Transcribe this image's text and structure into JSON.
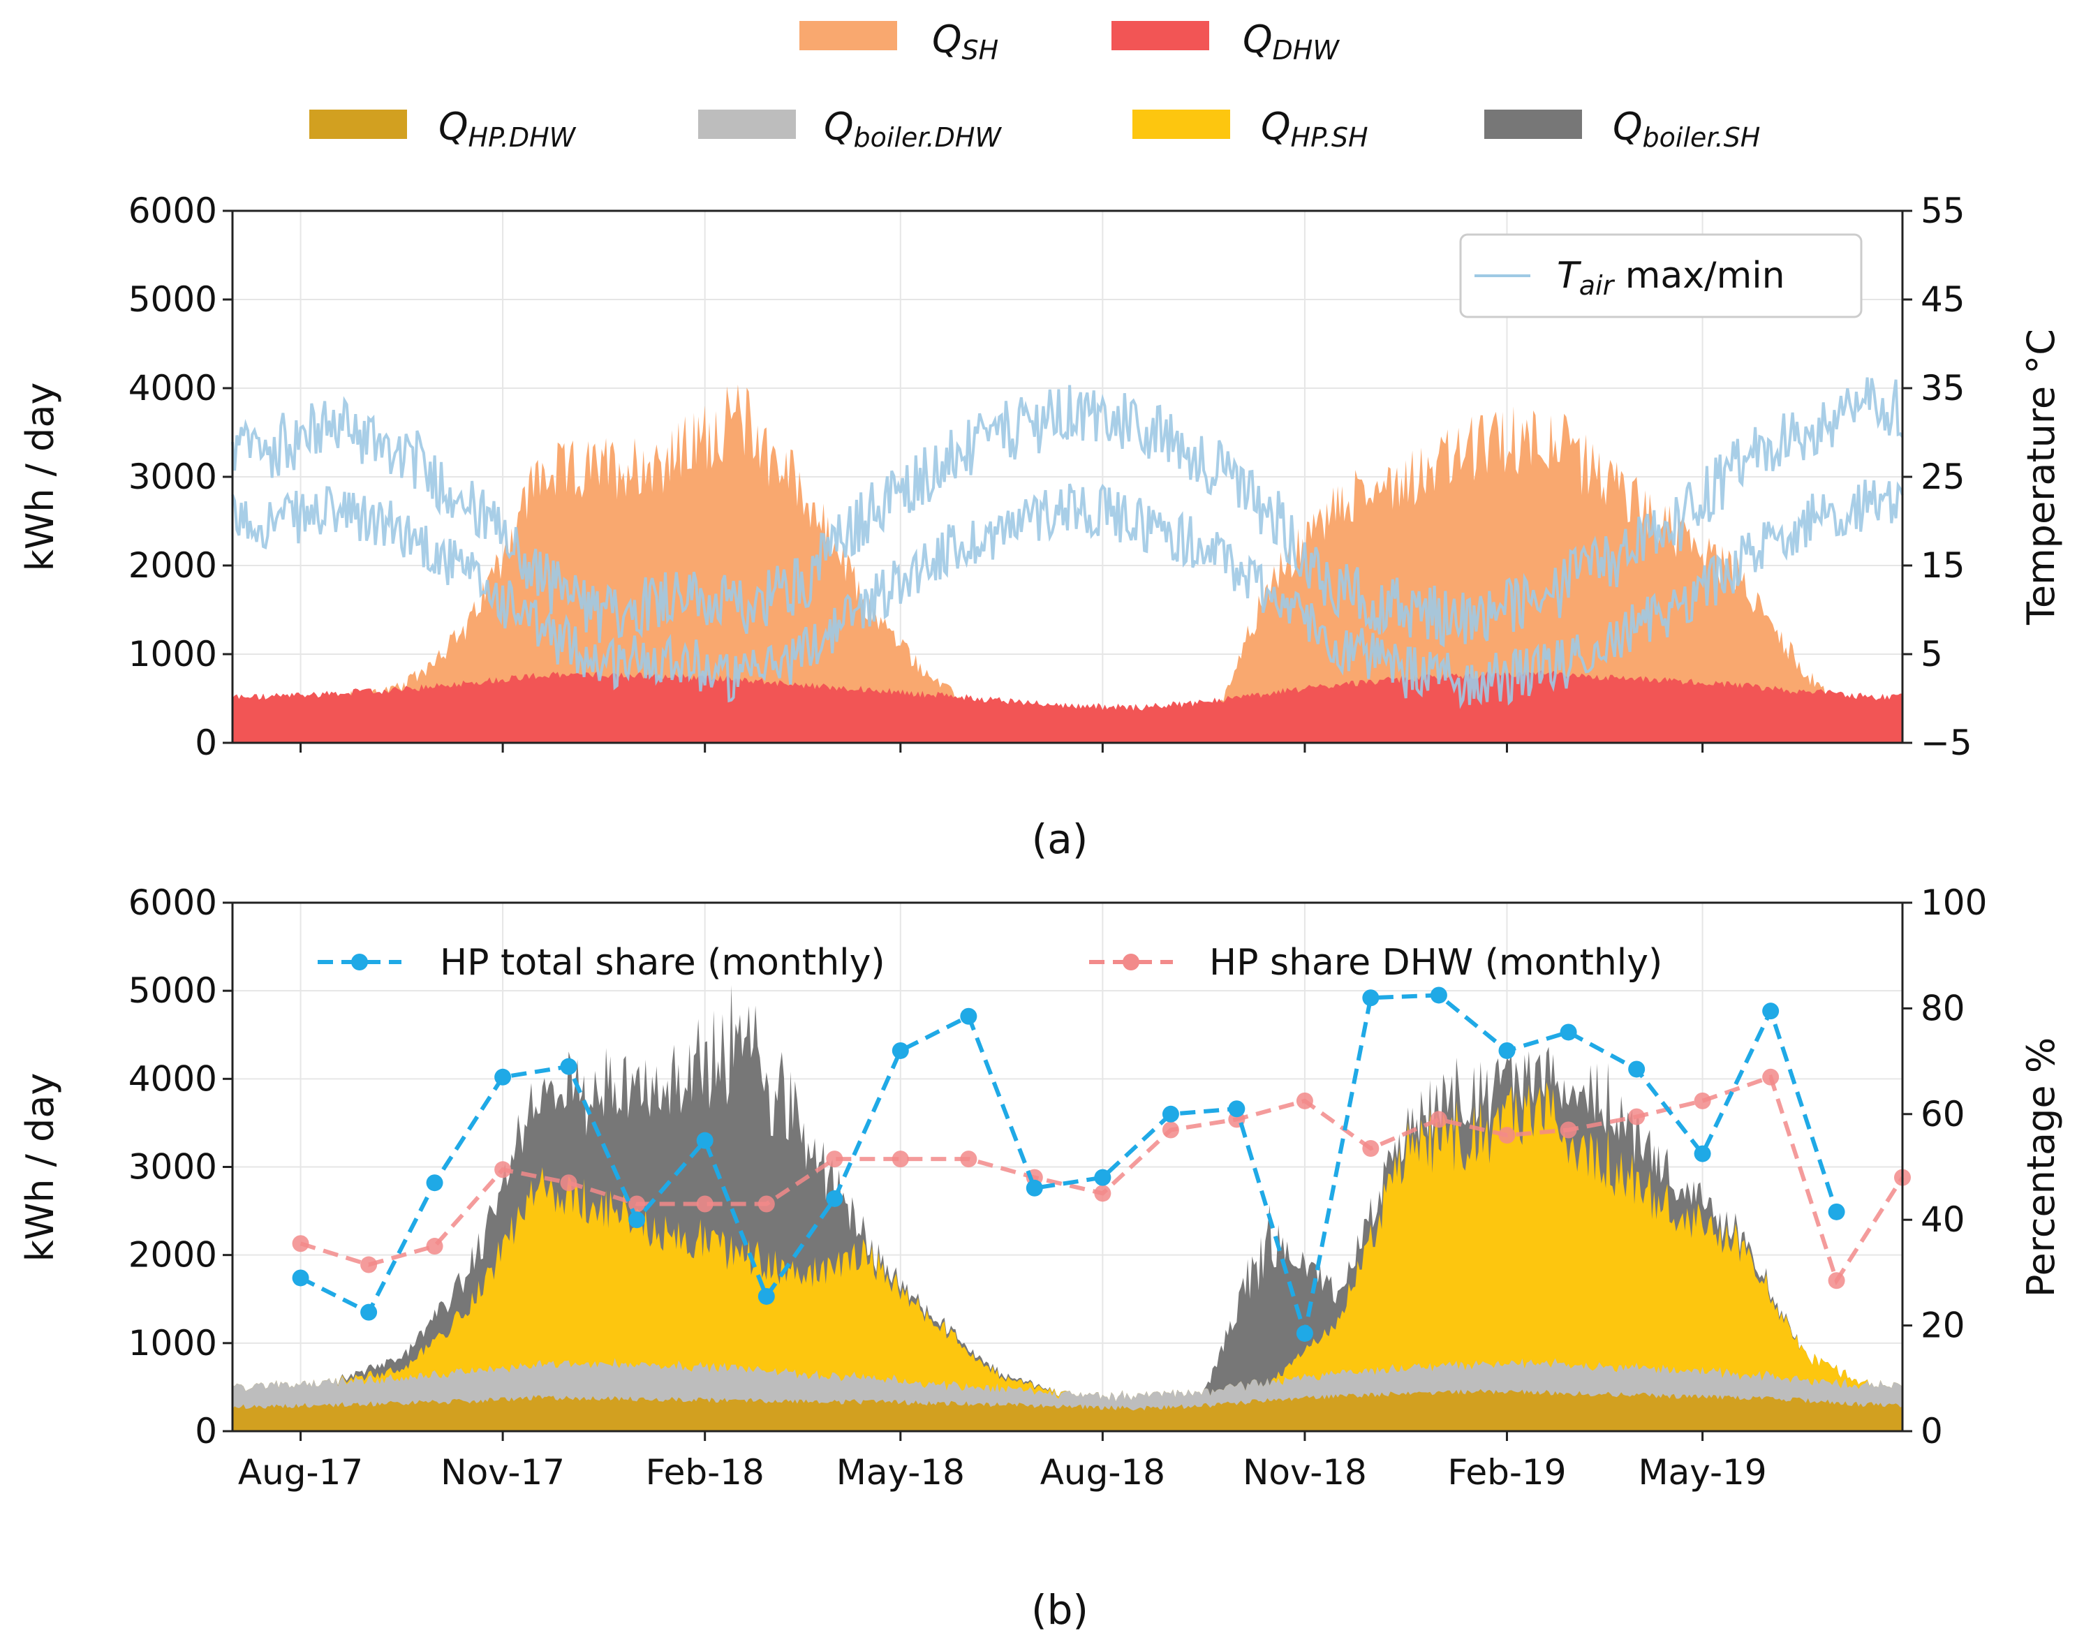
{
  "chart_data": [
    {
      "id": "a",
      "type": "area",
      "caption": "(a)",
      "ylabel": "kWh / day",
      "y2label": "Temperature °C",
      "ylim": [
        0,
        6000
      ],
      "y2lim": [
        -5,
        55
      ],
      "yticks": [
        "0",
        "1000",
        "2000",
        "3000",
        "4000",
        "5000",
        "6000"
      ],
      "y2ticks": [
        "−5",
        "5",
        "15",
        "25",
        "35",
        "45",
        "55"
      ],
      "grid": true,
      "x_start": "2017-07-01",
      "x_end": "2019-07-31",
      "legend_top": {
        "row1": [
          {
            "sym": "Q",
            "sub": "SH",
            "color": "#f9a86f"
          },
          {
            "sym": "Q",
            "sub": "DHW",
            "color": "#f25555"
          }
        ],
        "row2": [
          {
            "sym": "Q",
            "sub": "HP.DHW",
            "color": "#d2a020"
          },
          {
            "sym": "Q",
            "sub": "boiler.DHW",
            "color": "#bdbdbd"
          },
          {
            "sym": "Q",
            "sub": "HP.SH",
            "color": "#fdc60f"
          },
          {
            "sym": "Q",
            "sub": "boiler.SH",
            "color": "#777777"
          }
        ]
      },
      "inner_legend": {
        "sym": "T",
        "sub": "air",
        "text": " max/min",
        "color": "#9ec9e4",
        "placement": "top-right"
      },
      "series_monthly": {
        "months": [
          "Jul-17",
          "Aug-17",
          "Sep-17",
          "Oct-17",
          "Nov-17",
          "Dec-17",
          "Jan-18",
          "Feb-18",
          "Mar-18",
          "Apr-18",
          "May-18",
          "Jun-18",
          "Jul-18",
          "Aug-18",
          "Sep-18",
          "Oct-18",
          "Nov-18",
          "Dec-18",
          "Jan-19",
          "Feb-19",
          "Mar-19",
          "Apr-19",
          "May-19",
          "Jun-19",
          "Jul-19"
        ],
        "Q_SH": [
          450,
          500,
          620,
          1300,
          3000,
          3100,
          3200,
          3700,
          2900,
          1500,
          700,
          150,
          0,
          0,
          50,
          1800,
          2700,
          3000,
          3300,
          3500,
          3000,
          2400,
          1900,
          800,
          0
        ],
        "Q_DHW": [
          520,
          560,
          600,
          680,
          760,
          770,
          750,
          720,
          650,
          600,
          540,
          480,
          420,
          400,
          460,
          560,
          660,
          720,
          760,
          780,
          740,
          700,
          650,
          580,
          520
        ],
        "T_air_max": [
          28,
          31,
          28,
          22,
          14,
          9,
          12,
          10,
          13,
          21,
          26,
          30,
          32,
          31,
          27,
          21,
          12,
          10,
          9,
          11,
          15,
          19,
          26,
          30,
          33
        ],
        "T_air_min": [
          20,
          21,
          19,
          14,
          8,
          4,
          5,
          2,
          5,
          11,
          16,
          19,
          22,
          20,
          17,
          12,
          6,
          3,
          2,
          3,
          6,
          10,
          15,
          20,
          22
        ]
      }
    },
    {
      "id": "b",
      "type": "area",
      "caption": "(b)",
      "ylabel": "kWh / day",
      "y2label": "Percentage %",
      "ylim": [
        0,
        6000
      ],
      "y2lim": [
        0,
        100
      ],
      "yticks": [
        "0",
        "1000",
        "2000",
        "3000",
        "4000",
        "5000",
        "6000"
      ],
      "y2ticks": [
        "0",
        "20",
        "40",
        "60",
        "80",
        "100"
      ],
      "xticks": [
        {
          "label": "Aug-17",
          "date": "2017-08-01"
        },
        {
          "label": "Nov-17",
          "date": "2017-11-01"
        },
        {
          "label": "Feb-18",
          "date": "2018-02-01"
        },
        {
          "label": "May-18",
          "date": "2018-05-01"
        },
        {
          "label": "Aug-18",
          "date": "2018-08-01"
        },
        {
          "label": "Nov-18",
          "date": "2018-11-01"
        },
        {
          "label": "Feb-19",
          "date": "2019-02-01"
        },
        {
          "label": "May-19",
          "date": "2019-05-01"
        }
      ],
      "grid": true,
      "x_start": "2017-07-01",
      "x_end": "2019-07-31",
      "legend": [
        {
          "text": "HP total share (monthly)",
          "color": "#1fa9e6",
          "style": "dashed-marker"
        },
        {
          "text": "HP share DHW (monthly)",
          "color": "#f28a8a",
          "style": "dashed-marker"
        }
      ],
      "series_monthly": {
        "months": [
          "Jul-17",
          "Aug-17",
          "Sep-17",
          "Oct-17",
          "Nov-17",
          "Dec-17",
          "Jan-18",
          "Feb-18",
          "Mar-18",
          "Apr-18",
          "May-18",
          "Jun-18",
          "Jul-18",
          "Aug-18",
          "Sep-18",
          "Oct-18",
          "Nov-18",
          "Dec-18",
          "Jan-19",
          "Feb-19",
          "Mar-19",
          "Apr-19",
          "May-19",
          "Jun-19",
          "Jul-19"
        ],
        "Q_HP_DHW": [
          280,
          300,
          320,
          340,
          380,
          370,
          360,
          350,
          340,
          330,
          320,
          300,
          280,
          260,
          290,
          350,
          400,
          430,
          450,
          440,
          420,
          400,
          380,
          350,
          300
        ],
        "Q_boiler_DHW": [
          240,
          260,
          280,
          340,
          380,
          400,
          390,
          370,
          310,
          270,
          220,
          180,
          140,
          140,
          170,
          210,
          260,
          290,
          310,
          340,
          320,
          300,
          270,
          230,
          220
        ],
        "Q_HP_SH": [
          0,
          0,
          100,
          700,
          2000,
          1800,
          1500,
          1300,
          1100,
          1400,
          700,
          120,
          0,
          0,
          0,
          0,
          600,
          2500,
          2600,
          2800,
          2400,
          1800,
          1500,
          300,
          0
        ],
        "Q_boiler_SH": [
          0,
          0,
          150,
          400,
          1000,
          1300,
          1700,
          2400,
          1800,
          100,
          50,
          30,
          0,
          0,
          0,
          1700,
          300,
          200,
          500,
          400,
          700,
          400,
          100,
          0,
          0
        ]
      },
      "hp_total_share": [
        {
          "date": "2017-08-01",
          "value": 29
        },
        {
          "date": "2017-09-01",
          "value": 22.5
        },
        {
          "date": "2017-10-01",
          "value": 47
        },
        {
          "date": "2017-11-01",
          "value": 67
        },
        {
          "date": "2017-12-01",
          "value": 69
        },
        {
          "date": "2018-01-01",
          "value": 40
        },
        {
          "date": "2018-02-01",
          "value": 55
        },
        {
          "date": "2018-03-01",
          "value": 25.5
        },
        {
          "date": "2018-04-01",
          "value": 44
        },
        {
          "date": "2018-05-01",
          "value": 72
        },
        {
          "date": "2018-06-01",
          "value": 78.5
        },
        {
          "date": "2018-07-01",
          "value": 46
        },
        {
          "date": "2018-08-01",
          "value": 48
        },
        {
          "date": "2018-09-01",
          "value": 60
        },
        {
          "date": "2018-10-01",
          "value": 61
        },
        {
          "date": "2018-11-01",
          "value": 18.5
        },
        {
          "date": "2018-12-01",
          "value": 82
        },
        {
          "date": "2019-01-01",
          "value": 82.5
        },
        {
          "date": "2019-02-01",
          "value": 72
        },
        {
          "date": "2019-03-01",
          "value": 75.5
        },
        {
          "date": "2019-04-01",
          "value": 68.5
        },
        {
          "date": "2019-05-01",
          "value": 52.5
        },
        {
          "date": "2019-06-01",
          "value": 79.5
        },
        {
          "date": "2019-07-01",
          "value": 41.5
        }
      ],
      "hp_share_dhw": [
        {
          "date": "2017-08-01",
          "value": 35.5
        },
        {
          "date": "2017-09-01",
          "value": 31.5
        },
        {
          "date": "2017-10-01",
          "value": 35
        },
        {
          "date": "2017-11-01",
          "value": 49.5
        },
        {
          "date": "2017-12-01",
          "value": 47
        },
        {
          "date": "2018-01-01",
          "value": 43
        },
        {
          "date": "2018-02-01",
          "value": 43
        },
        {
          "date": "2018-03-01",
          "value": 43
        },
        {
          "date": "2018-04-01",
          "value": 51.5
        },
        {
          "date": "2018-05-01",
          "value": 51.5
        },
        {
          "date": "2018-06-01",
          "value": 51.5
        },
        {
          "date": "2018-07-01",
          "value": 48
        },
        {
          "date": "2018-08-01",
          "value": 45
        },
        {
          "date": "2018-09-01",
          "value": 57
        },
        {
          "date": "2018-10-01",
          "value": 59
        },
        {
          "date": "2018-11-01",
          "value": 62.5
        },
        {
          "date": "2018-12-01",
          "value": 53.5
        },
        {
          "date": "2019-01-01",
          "value": 59
        },
        {
          "date": "2019-02-01",
          "value": 56
        },
        {
          "date": "2019-03-01",
          "value": 57
        },
        {
          "date": "2019-04-01",
          "value": 59.5
        },
        {
          "date": "2019-05-01",
          "value": 62.5
        },
        {
          "date": "2019-06-01",
          "value": 67
        },
        {
          "date": "2019-07-01",
          "value": 28.5
        },
        {
          "date": "2019-07-31",
          "value": 48
        }
      ]
    }
  ]
}
